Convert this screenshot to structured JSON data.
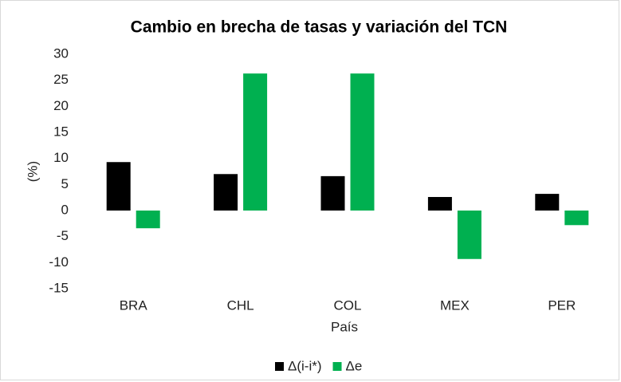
{
  "chart_data": {
    "type": "bar",
    "title": "Cambio en brecha de tasas y variación del TCN",
    "y_label": "(%)",
    "x_label": "País",
    "categories": [
      "BRA",
      "CHL",
      "COL",
      "MEX",
      "PER"
    ],
    "series": [
      {
        "name": "Δ(i-i*)",
        "color": "#000000",
        "values": [
          9.3,
          7.0,
          6.6,
          2.6,
          3.2
        ]
      },
      {
        "name": "Δe",
        "color": "#00b050",
        "values": [
          -3.4,
          26.3,
          26.3,
          -9.3,
          -2.8
        ]
      }
    ],
    "ylim": [
      -15,
      30
    ],
    "yticks": [
      -15,
      -10,
      -5,
      0,
      5,
      10,
      15,
      20,
      25,
      30
    ],
    "grid": false
  }
}
